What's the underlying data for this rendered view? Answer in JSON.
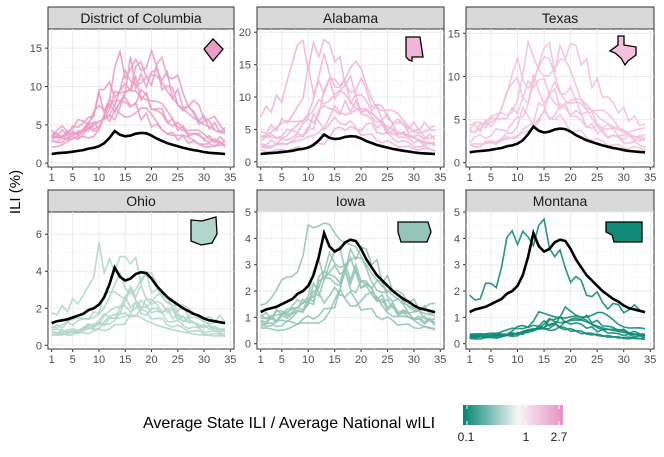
{
  "chart_data": {
    "type": "line",
    "ylabel": "ILI (%)",
    "xticks": [
      1,
      5,
      10,
      15,
      20,
      25,
      30,
      35
    ],
    "legend": {
      "title": "Average State ILI / Average National wILI",
      "ticks": [
        "0.1",
        "1",
        "2.7"
      ],
      "colors": [
        "#018571",
        "#f7f7f7",
        "#e98fc4"
      ]
    },
    "national_wili": [
      1.2,
      1.3,
      1.35,
      1.4,
      1.5,
      1.6,
      1.7,
      1.9,
      2.0,
      2.2,
      2.6,
      3.3,
      4.2,
      3.7,
      3.5,
      3.6,
      3.85,
      3.95,
      3.9,
      3.6,
      3.2,
      2.9,
      2.6,
      2.4,
      2.2,
      2.0,
      1.85,
      1.7,
      1.6,
      1.45,
      1.35,
      1.3,
      1.25,
      1.2
    ],
    "panels": [
      {
        "state": "District of Columbia",
        "color": "#ec9cc6",
        "ylim": [
          -0.5,
          17.5
        ],
        "yticks": [
          0,
          5,
          10,
          15
        ],
        "lines": 9,
        "scales": [
          2.2,
          2.6,
          3.0,
          3.4,
          1.8,
          2.8,
          2.4,
          3.2,
          2.0
        ],
        "shifts": [
          0,
          -2,
          3,
          1,
          -1,
          2,
          0,
          4,
          -3
        ]
      },
      {
        "state": "Alabama",
        "color": "#f1b6d7",
        "ylim": [
          -0.8,
          20.5
        ],
        "yticks": [
          0,
          5,
          10,
          15,
          20
        ],
        "lines": 9,
        "scales": [
          1.6,
          2.2,
          4.6,
          3.0,
          3.6,
          2.0,
          2.6,
          1.4,
          3.2
        ],
        "shifts": [
          -2,
          0,
          -5,
          1,
          0,
          2,
          -1,
          3,
          -3
        ]
      },
      {
        "state": "Texas",
        "color": "#f3c1dd",
        "ylim": [
          -0.5,
          15.5
        ],
        "yticks": [
          0,
          5,
          10,
          15
        ],
        "lines": 8,
        "scales": [
          1.4,
          2.4,
          3.4,
          2.2,
          3.0,
          1.8,
          2.8,
          1.6
        ],
        "shifts": [
          -2,
          -4,
          2,
          0,
          -1,
          3,
          -3,
          1
        ]
      },
      {
        "state": "Ohio",
        "color": "#b3d6cc",
        "ylim": [
          -0.2,
          7.2
        ],
        "yticks": [
          0,
          2,
          4,
          6
        ],
        "lines": 9,
        "scales": [
          0.45,
          0.6,
          0.75,
          0.5,
          0.9,
          0.4,
          0.65,
          0.55,
          1.2
        ],
        "shifts": [
          0,
          2,
          -1,
          4,
          1,
          -2,
          3,
          0,
          -3
        ]
      },
      {
        "state": "Iowa",
        "color": "#93c4b6",
        "ylim": [
          -0.2,
          5.0
        ],
        "yticks": [
          0,
          1,
          2,
          3,
          4,
          5
        ],
        "lines": 9,
        "scales": [
          0.5,
          0.7,
          0.9,
          0.6,
          1.15,
          0.8,
          0.45,
          0.75,
          0.65
        ],
        "shifts": [
          -2,
          0,
          2,
          4,
          -3,
          1,
          3,
          -1,
          0
        ]
      },
      {
        "state": "Montana",
        "color": "#0f8a76",
        "ylim": [
          -0.2,
          5.0
        ],
        "yticks": [
          0,
          1,
          2,
          3,
          4,
          5
        ],
        "lines": 8,
        "scales": [
          0.15,
          0.2,
          0.25,
          0.18,
          0.3,
          0.22,
          0.28,
          1.1
        ],
        "shifts": [
          0,
          2,
          4,
          -2,
          6,
          3,
          1,
          -4
        ]
      }
    ]
  }
}
